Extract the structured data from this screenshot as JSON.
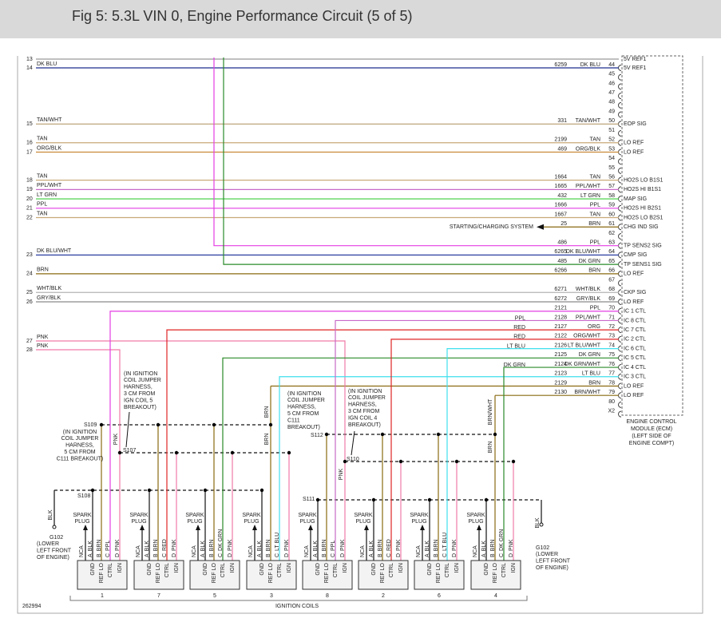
{
  "header": {
    "title": "Fig 5: 5.3L VIN 0, Engine Performance Circuit (5 of 5)"
  },
  "left_pins": [
    {
      "pin": "13"
    },
    {
      "pin": "14",
      "color": "DK BLU"
    },
    {
      "pin": "15",
      "color": "TAN/WHT"
    },
    {
      "pin": "16",
      "color": "TAN"
    },
    {
      "pin": "17",
      "color": "ORG/BLK"
    },
    {
      "pin": "18",
      "color": "TAN"
    },
    {
      "pin": "19",
      "color": "PPL/WHT"
    },
    {
      "pin": "20",
      "color": "LT GRN"
    },
    {
      "pin": "21",
      "color": "PPL"
    },
    {
      "pin": "22",
      "color": "TAN"
    },
    {
      "pin": "23",
      "color": "DK BLU/WHT"
    },
    {
      "pin": "24",
      "color": "BRN"
    },
    {
      "pin": "25",
      "color": "WHT/BLK"
    },
    {
      "pin": "26",
      "color": "GRY/BLK"
    },
    {
      "pin": "27",
      "color": "PNK"
    },
    {
      "pin": "28",
      "color": "PNK"
    }
  ],
  "ecm_pins": [
    {
      "signal": "5V REF1"
    },
    {
      "pin": "44",
      "circuit": "6259",
      "color": "DK BLU",
      "signal": "5V REF1"
    },
    {
      "pin": "45"
    },
    {
      "pin": "46"
    },
    {
      "pin": "47"
    },
    {
      "pin": "48"
    },
    {
      "pin": "49"
    },
    {
      "pin": "50",
      "circuit": "331",
      "color": "TAN/WHT",
      "signal": "EOP SIG"
    },
    {
      "pin": "51"
    },
    {
      "pin": "52",
      "circuit": "2199",
      "color": "TAN",
      "signal": "LO REF"
    },
    {
      "pin": "53",
      "circuit": "469",
      "color": "ORG/BLK",
      "signal": "LO REF"
    },
    {
      "pin": "54"
    },
    {
      "pin": "55"
    },
    {
      "pin": "56",
      "circuit": "1664",
      "color": "TAN",
      "signal": "HO2S LO B1S1"
    },
    {
      "pin": "57",
      "circuit": "1665",
      "color": "PPL/WHT",
      "signal": "HO2S HI B1S1"
    },
    {
      "pin": "58",
      "circuit": "432",
      "color": "LT GRN",
      "signal": "MAP SIG"
    },
    {
      "pin": "59",
      "circuit": "1666",
      "color": "PPL",
      "signal": "HO2S HI B2S1"
    },
    {
      "pin": "60",
      "circuit": "1667",
      "color": "TAN",
      "signal": "HO2S LO B2S1"
    },
    {
      "pin": "61",
      "circuit": "25",
      "color": "BRN",
      "signal": "CHG IND SIG"
    },
    {
      "pin": "62"
    },
    {
      "pin": "63",
      "circuit": "486",
      "color": "PPL",
      "signal": "TP SENS2 SIG"
    },
    {
      "pin": "64",
      "circuit": "6265",
      "color": "DK BLU/WHT",
      "signal": "CMP SIG"
    },
    {
      "pin": "65",
      "circuit": "485",
      "color": "DK GRN",
      "signal": "TP SENS1 SIG"
    },
    {
      "pin": "66",
      "circuit": "6266",
      "color": "BRN",
      "signal": "LO REF"
    },
    {
      "pin": "67"
    },
    {
      "pin": "68",
      "circuit": "6271",
      "color": "WHT/BLK",
      "signal": "CKP SIG"
    },
    {
      "pin": "69",
      "circuit": "6272",
      "color": "GRY/BLK",
      "signal": "LO REF"
    },
    {
      "pin": "70",
      "circuit": "2121",
      "color": "PPL",
      "signal": "IC 1 CTL"
    },
    {
      "pin": "71",
      "circuit": "2128",
      "color": "PPL/WHT",
      "signal": "IC 8 CTL"
    },
    {
      "pin": "72",
      "circuit": "2127",
      "color": "ORG",
      "signal": "IC 7 CTL"
    },
    {
      "pin": "73",
      "circuit": "2122",
      "color": "ORG/WHT",
      "signal": "IC 2 CTL"
    },
    {
      "pin": "74",
      "circuit": "2126",
      "color": "LT BLU/WHT",
      "signal": "IC 6 CTL"
    },
    {
      "pin": "75",
      "circuit": "2125",
      "color": "DK GRN",
      "signal": "IC 5 CTL"
    },
    {
      "pin": "76",
      "circuit": "2124",
      "color": "DK GRN/WHT",
      "signal": "IC 4 CTL"
    },
    {
      "pin": "77",
      "circuit": "2123",
      "color": "LT BLU",
      "signal": "IC 3 CTL"
    },
    {
      "pin": "78",
      "circuit": "2129",
      "color": "BRN",
      "signal": "LO REF"
    },
    {
      "pin": "79",
      "circuit": "2130",
      "color": "BRN/WHT",
      "signal": "LO REF"
    },
    {
      "pin": "80"
    },
    {
      "pin": "X2"
    }
  ],
  "ecm_label": [
    "ENGINE CONTROL",
    "MODULE (ECM)",
    "(LEFT SIDE OF",
    "ENGINE COMPT)"
  ],
  "starting_charging": "STARTING/CHARGING SYSTEM",
  "wire_labels": [
    "PPL",
    "RED",
    "RED",
    "LT BLU",
    "DK GRN",
    "BRN",
    "BRN",
    "PNK",
    "PNK",
    "BRN/WHT",
    "BRN",
    "BLK",
    "BLK"
  ],
  "splices": [
    "S109",
    "S107",
    "S108",
    "S112",
    "S110",
    "S111"
  ],
  "notes": [
    [
      "(IN IGNITION",
      "COIL JUMPER",
      "HARNESS,",
      "5 CM FROM",
      "C111 BREAKOUT)"
    ],
    [
      "(IN IGNITION",
      "COIL JUMPER",
      "HARNESS,",
      "3 CM FROM",
      "IGN COIL 5",
      "BREAKOUT)"
    ],
    [
      "(IN IGNITION",
      "COIL JUMPER",
      "HARNESS,",
      "5 CM FROM",
      "C111",
      "BREAKOUT)"
    ],
    [
      "(IN IGNITION",
      "COIL JUMPER",
      "HARNESS,",
      "3 CM FROM",
      "IGN COIL 4",
      "BREAKOUT)"
    ]
  ],
  "grounds": [
    {
      "label": "G102",
      "lines": [
        "(LOWER",
        "LEFT FRONT",
        "OF ENGINE)"
      ]
    },
    {
      "label": "G102",
      "lines": [
        "(LOWER",
        "LEFT FRONT",
        "OF ENGINE)"
      ]
    }
  ],
  "coils": [
    {
      "number": "1",
      "nca": "NCA",
      "spark": [
        "SPARK",
        "PLUG"
      ],
      "pins": [
        {
          "pin": "A",
          "color": "BLK"
        },
        {
          "pin": "B",
          "color": "BRN"
        },
        {
          "pin": "C",
          "color": "PPL"
        },
        {
          "pin": "D",
          "color": "PNK"
        }
      ],
      "terminals": [
        "GND",
        "REF LO",
        "CTRL",
        "IGN"
      ]
    },
    {
      "number": "7",
      "nca": "NCA",
      "spark": [
        "SPARK",
        "PLUG"
      ],
      "pins": [
        {
          "pin": "A",
          "color": "BLK"
        },
        {
          "pin": "B",
          "color": "BRN"
        },
        {
          "pin": "C",
          "color": "RED"
        },
        {
          "pin": "D",
          "color": "PNK"
        }
      ],
      "terminals": [
        "GND",
        "REF LO",
        "CTRL",
        "IGN"
      ]
    },
    {
      "number": "5",
      "nca": "NCA",
      "spark": [
        "SPARK",
        "PLUG"
      ],
      "pins": [
        {
          "pin": "A",
          "color": "BLK"
        },
        {
          "pin": "B",
          "color": "BRN"
        },
        {
          "pin": "C",
          "color": "DK GRN"
        },
        {
          "pin": "D",
          "color": "PNK"
        }
      ],
      "terminals": [
        "GND",
        "REF LO",
        "CTRL",
        "IGN"
      ]
    },
    {
      "number": "3",
      "nca": "NCA",
      "spark": [
        "SPARK",
        "PLUG"
      ],
      "pins": [
        {
          "pin": "A",
          "color": "BLK"
        },
        {
          "pin": "B",
          "color": "BRN"
        },
        {
          "pin": "C",
          "color": "LT BLU"
        },
        {
          "pin": "D",
          "color": "PNK"
        }
      ],
      "terminals": [
        "GND",
        "REF LO",
        "CTRL",
        "IGN"
      ]
    },
    {
      "number": "8",
      "nca": "NCA",
      "spark": [
        "SPARK",
        "PLUG"
      ],
      "pins": [
        {
          "pin": "A",
          "color": "BLK"
        },
        {
          "pin": "B",
          "color": "BRN"
        },
        {
          "pin": "C",
          "color": "PPL"
        },
        {
          "pin": "D",
          "color": "PNK"
        }
      ],
      "terminals": [
        "GND",
        "REF LO",
        "CTRL",
        "IGN"
      ]
    },
    {
      "number": "2",
      "nca": "NCA",
      "spark": [
        "SPARK",
        "PLUG"
      ],
      "pins": [
        {
          "pin": "A",
          "color": "BLK"
        },
        {
          "pin": "B",
          "color": "BRN"
        },
        {
          "pin": "C",
          "color": "RED"
        },
        {
          "pin": "D",
          "color": "PNK"
        }
      ],
      "terminals": [
        "GND",
        "REF LO",
        "CTRL",
        "IGN"
      ]
    },
    {
      "number": "6",
      "nca": "NCA",
      "spark": [
        "SPARK",
        "PLUG"
      ],
      "pins": [
        {
          "pin": "A",
          "color": "BLK"
        },
        {
          "pin": "B",
          "color": "BRN"
        },
        {
          "pin": "C",
          "color": "LT BLU"
        },
        {
          "pin": "D",
          "color": "PNK"
        }
      ],
      "terminals": [
        "GND",
        "REF LO",
        "CTRL",
        "IGN"
      ]
    },
    {
      "number": "4",
      "nca": "NCA",
      "spark": [
        "SPARK",
        "PLUG"
      ],
      "pins": [
        {
          "pin": "A",
          "color": "BLK"
        },
        {
          "pin": "B",
          "color": "BRN"
        },
        {
          "pin": "C",
          "color": "DK GRN"
        },
        {
          "pin": "D",
          "color": "PNK"
        }
      ],
      "terminals": [
        "GND",
        "REF LO",
        "CTRL",
        "IGN"
      ]
    }
  ],
  "coils_label": "IGNITION COILS",
  "figure_id": "262994"
}
